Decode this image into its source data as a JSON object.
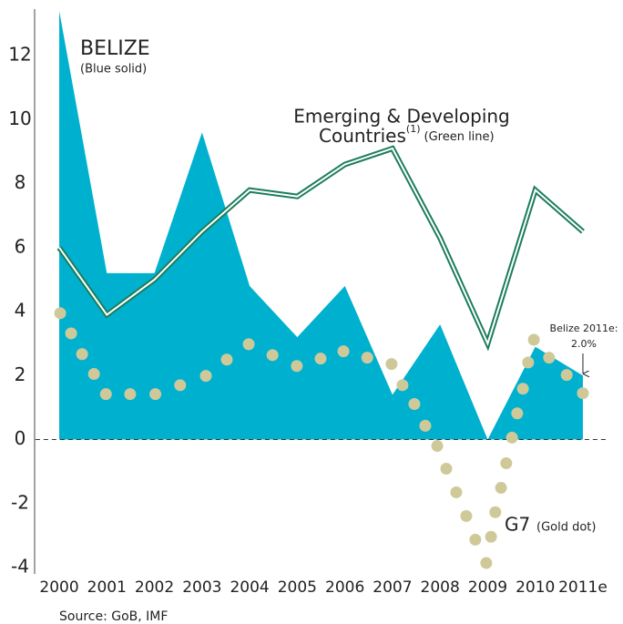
{
  "chart_data": {
    "type": "mixed",
    "annotations": {
      "belize": "BELIZE",
      "belize_note": "(Blue solid)",
      "emerging_1": "Emerging & Developing",
      "emerging_2": "Countries",
      "emerging_sup": "(1)",
      "emerging_note": "(Green line)",
      "g7": "G7",
      "g7_note": "(Gold dot)",
      "callout_1": "Belize 2011e:",
      "callout_2": "2.0%"
    },
    "source": "Source: GoB, IMF",
    "xlim": [
      1999.5,
      2011.5
    ],
    "xticks": [
      2000,
      2001,
      2002,
      2003,
      2004,
      2005,
      2006,
      2007,
      2008,
      2009,
      2010,
      {
        "value": 2011,
        "label": "2011e"
      }
    ],
    "ylim": [
      -4.2,
      13.4
    ],
    "yticks": [
      -4,
      -2,
      0,
      2,
      4,
      6,
      8,
      10,
      12
    ],
    "negative_tick_color": "#e0896a",
    "zero_line": true,
    "series": [
      {
        "name": "Belize",
        "kind": "area",
        "color": "#00b1cf",
        "x": [
          2000,
          2001,
          2002,
          2003,
          2004,
          2005,
          2006,
          2007,
          2008,
          2009,
          2010,
          2011
        ],
        "values": [
          13.4,
          5.2,
          5.2,
          9.6,
          4.8,
          3.2,
          4.8,
          1.4,
          3.6,
          0.0,
          2.9,
          2.0
        ]
      },
      {
        "name": "Emerging & Developing Countries",
        "kind": "line",
        "color": "#1c7d5c",
        "x": [
          2000,
          2001,
          2002,
          2003,
          2004,
          2005,
          2006,
          2007,
          2008,
          2009,
          2010,
          2011
        ],
        "values": [
          6.0,
          3.9,
          5.0,
          6.5,
          7.8,
          7.6,
          8.6,
          9.1,
          6.3,
          3.0,
          7.8,
          6.5
        ]
      },
      {
        "name": "G7",
        "kind": "dots",
        "color": "#cfc99a",
        "x": [
          2000.02,
          2000.25,
          2000.48,
          2000.73,
          2000.98,
          2001.49,
          2002.02,
          2002.54,
          2003.08,
          2003.52,
          2003.98,
          2004.48,
          2004.99,
          2005.49,
          2005.97,
          2006.47,
          2006.98,
          2007.21,
          2007.46,
          2007.69,
          2007.94,
          2008.13,
          2008.34,
          2008.55,
          2008.74,
          2008.97,
          2009.07,
          2009.16,
          2009.28,
          2009.39,
          2009.51,
          2009.62,
          2009.74,
          2009.85,
          2009.97,
          2010.29,
          2010.66,
          2011.0
        ],
        "values": [
          3.95,
          3.32,
          2.67,
          2.05,
          1.42,
          1.42,
          1.42,
          1.7,
          1.99,
          2.5,
          2.98,
          2.64,
          2.3,
          2.53,
          2.76,
          2.56,
          2.36,
          1.7,
          1.11,
          0.43,
          -0.2,
          -0.91,
          -1.65,
          -2.39,
          -3.13,
          -3.86,
          -3.04,
          -2.27,
          -1.51,
          -0.74,
          0.06,
          0.82,
          1.59,
          2.41,
          3.12,
          2.56,
          2.02,
          1.45
        ]
      }
    ]
  }
}
